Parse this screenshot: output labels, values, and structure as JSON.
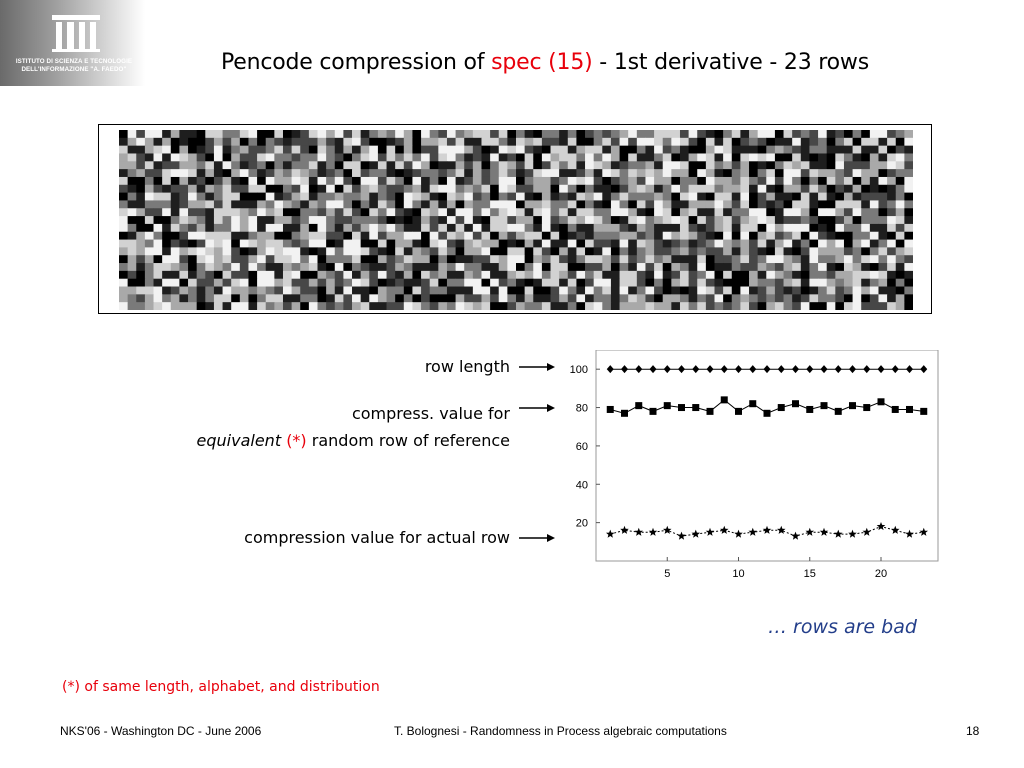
{
  "logo": {
    "icon": "istituto-logo-icon",
    "line1": "ISTITUTO DI SCIENZA E TECNOLOGIE",
    "line2": "DELL'INFORMAZIONE \"A. FAEDO\""
  },
  "title": {
    "prefix": "Pencode compression of ",
    "highlight": "spec (15)",
    "suffix": " - 1st derivative - 23 rows"
  },
  "labels": {
    "row_length": "row length",
    "compress_line1": "compress. value for",
    "compress_line2_italic": "equivalent",
    "compress_line2_star": "(*)",
    "compress_line2_rest": "random row of reference",
    "actual": "compression value for actual row"
  },
  "note_bad": "… rows are bad",
  "footnote": "(*) of same length, alphabet, and distribution",
  "footer": {
    "left": "NKS'06 - Washington DC - June 2006",
    "center": "T. Bolognesi - Randomness in Process algebraic computations",
    "right": "18"
  },
  "chart_data": {
    "type": "scatter",
    "title": "",
    "xlabel": "",
    "ylabel": "",
    "x_ticks": [
      5,
      10,
      15,
      20
    ],
    "y_ticks": [
      20,
      40,
      60,
      80,
      100
    ],
    "xlim": [
      0,
      24
    ],
    "ylim": [
      0,
      110
    ],
    "x": [
      1,
      2,
      3,
      4,
      5,
      6,
      7,
      8,
      9,
      10,
      11,
      12,
      13,
      14,
      15,
      16,
      17,
      18,
      19,
      20,
      21,
      22,
      23
    ],
    "series": [
      {
        "marker": "diamond",
        "values": [
          100,
          100,
          100,
          100,
          100,
          100,
          100,
          100,
          100,
          100,
          100,
          100,
          100,
          100,
          100,
          100,
          100,
          100,
          100,
          100,
          100,
          100,
          100
        ]
      },
      {
        "marker": "square",
        "values": [
          79,
          77,
          81,
          78,
          81,
          80,
          80,
          78,
          84,
          78,
          82,
          77,
          80,
          82,
          79,
          81,
          78,
          81,
          80,
          83,
          79,
          79,
          78
        ]
      },
      {
        "marker": "star",
        "values": [
          14,
          16,
          15,
          15,
          16,
          13,
          14,
          15,
          16,
          14,
          15,
          16,
          16,
          13,
          15,
          15,
          14,
          14,
          15,
          18,
          16,
          14,
          15
        ]
      }
    ]
  }
}
